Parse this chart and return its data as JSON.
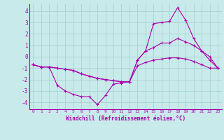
{
  "xlabel": "Windchill (Refroidissement éolien,°C)",
  "background_color": "#c8eaea",
  "grid_color": "#a8d4d4",
  "line_color": "#aa00aa",
  "xlim": [
    -0.5,
    23.5
  ],
  "ylim": [
    -4.6,
    4.6
  ],
  "xticks": [
    0,
    1,
    2,
    3,
    4,
    5,
    6,
    7,
    8,
    9,
    10,
    11,
    12,
    13,
    14,
    15,
    16,
    17,
    18,
    19,
    20,
    21,
    22,
    23
  ],
  "yticks": [
    -4,
    -3,
    -2,
    -1,
    0,
    1,
    2,
    3,
    4
  ],
  "hours": [
    0,
    1,
    2,
    3,
    4,
    5,
    6,
    7,
    8,
    9,
    10,
    11,
    12,
    13,
    14,
    15,
    16,
    17,
    18,
    19,
    20,
    21,
    22,
    23
  ],
  "line1": [
    -0.7,
    -0.9,
    -0.9,
    -2.5,
    -3.0,
    -3.3,
    -3.5,
    -3.5,
    -4.2,
    -3.4,
    -2.4,
    -2.3,
    -2.2,
    -0.3,
    0.5,
    2.9,
    3.0,
    3.1,
    4.3,
    3.2,
    1.6,
    0.5,
    -0.3,
    -1.0
  ],
  "line2": [
    -0.7,
    -0.9,
    -0.9,
    -1.0,
    -1.1,
    -1.2,
    -1.5,
    -1.7,
    -1.9,
    -2.0,
    -2.1,
    -2.2,
    -2.2,
    -0.3,
    0.5,
    0.8,
    1.2,
    1.2,
    1.6,
    1.3,
    1.0,
    0.5,
    0.0,
    -1.0
  ],
  "line3": [
    -0.7,
    -0.9,
    -0.9,
    -1.0,
    -1.1,
    -1.2,
    -1.5,
    -1.7,
    -1.9,
    -2.0,
    -2.1,
    -2.2,
    -2.2,
    -0.8,
    -0.5,
    -0.3,
    -0.2,
    -0.1,
    -0.1,
    -0.2,
    -0.4,
    -0.7,
    -1.0,
    -1.0
  ]
}
